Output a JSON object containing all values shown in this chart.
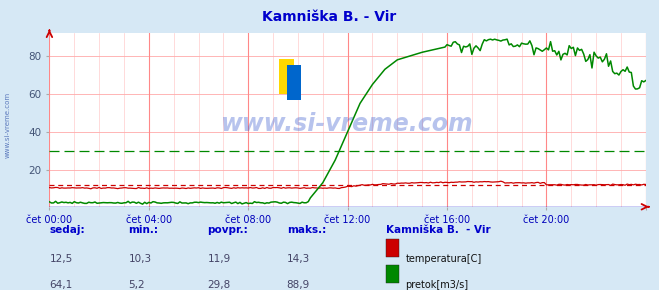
{
  "title": "Kamniška B. - Vir",
  "title_color": "#0000cc",
  "bg_color": "#d6e8f5",
  "plot_bg_color": "#ffffff",
  "x_label_color": "#0000bb",
  "grid_color_v_major": "#ff8888",
  "grid_color_v_minor": "#ffcccc",
  "grid_color_h": "#ffaaaa",
  "x_ticks": [
    0,
    240,
    480,
    720,
    960,
    1200,
    1440
  ],
  "x_tick_labels": [
    "čet 00:00",
    "čet 04:00",
    "čet 08:00",
    "čet 12:00",
    "čet 16:00",
    "čet 20:00"
  ],
  "xlim": [
    0,
    1440
  ],
  "ylim": [
    0,
    92
  ],
  "y_ticks": [
    20,
    40,
    60,
    80
  ],
  "watermark": "www.si-vreme.com",
  "watermark_color": "#3355cc",
  "watermark_alpha": 0.35,
  "sidebar_text": "www.si-vreme.com",
  "sidebar_color": "#3355aa",
  "temp_color": "#cc0000",
  "flow_color": "#008800",
  "level_color": "#0000cc",
  "temp_avg": 11.9,
  "flow_avg": 29.8,
  "legend_title": "Kamniška B.  - Vir",
  "legend_title_color": "#0000cc",
  "label_color": "#0000cc",
  "value_color": "#444466",
  "footer_headers": [
    "sedaj:",
    "min.:",
    "povpr.:",
    "maks.:"
  ],
  "footer_row1": [
    "12,5",
    "10,3",
    "11,9",
    "14,3"
  ],
  "footer_row2": [
    "64,1",
    "5,2",
    "29,8",
    "88,9"
  ],
  "footer_label1": "temperatura[C]",
  "footer_label2": "pretok[m3/s]"
}
